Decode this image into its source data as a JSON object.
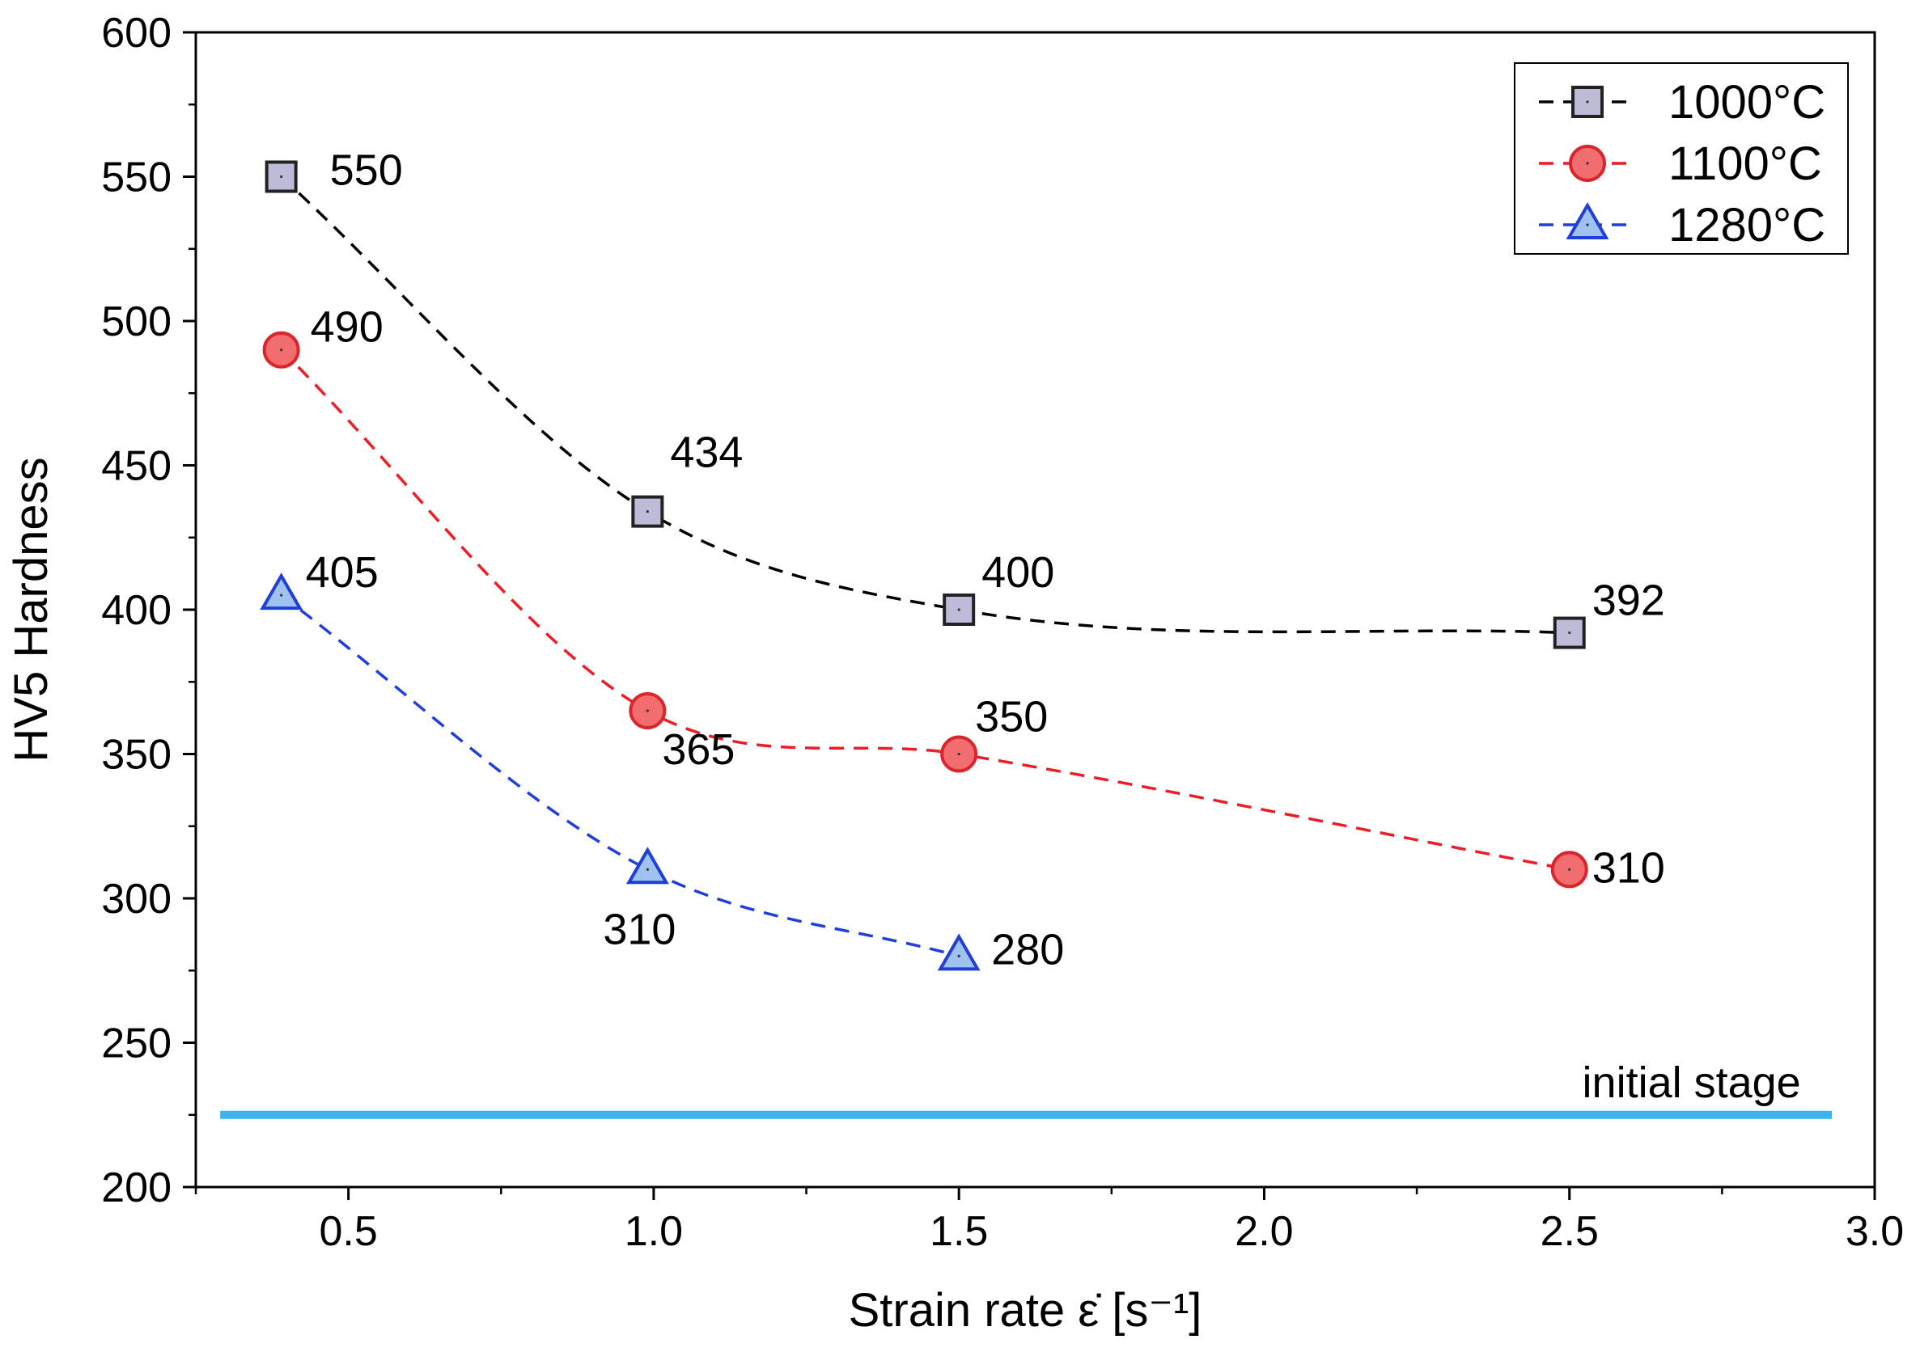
{
  "chart_data": {
    "type": "scatter",
    "xlabel": "Strain rate ε̇ [s⁻¹]",
    "ylabel": "HV5 Hardness",
    "xlim": [
      0.25,
      3.0
    ],
    "ylim": [
      200,
      600
    ],
    "xticks": [
      "0.5",
      "1.0",
      "1.5",
      "2.0",
      "2.5",
      "3.0"
    ],
    "yticks": [
      "200",
      "250",
      "300",
      "350",
      "400",
      "450",
      "500",
      "550",
      "600"
    ],
    "grid": false,
    "legend_position": "top-right",
    "series": [
      {
        "name": "1000°C",
        "marker": "square",
        "line_color": "#000000",
        "fill_color": "#bdbcd8",
        "edge_color": "#222222",
        "x": [
          0.39,
          0.99,
          1.5,
          2.5
        ],
        "y": [
          550,
          434,
          400,
          392
        ],
        "labels": [
          "550",
          "434",
          "400",
          "392"
        ]
      },
      {
        "name": "1100°C",
        "marker": "circle",
        "line_color": "#ee1c24",
        "fill_color": "#f26d6f",
        "edge_color": "#d8262b",
        "x": [
          0.39,
          0.99,
          1.5,
          2.5
        ],
        "y": [
          490,
          365,
          350,
          310
        ],
        "labels": [
          "490",
          "365",
          "350",
          "310"
        ]
      },
      {
        "name": "1280°C",
        "marker": "triangle",
        "line_color": "#1f3fd8",
        "fill_color": "#9fc3ee",
        "edge_color": "#1f3fd8",
        "x": [
          0.39,
          0.99,
          1.5
        ],
        "y": [
          405,
          310,
          280
        ],
        "labels": [
          "405",
          "310",
          "280"
        ]
      }
    ],
    "reference_line": {
      "label": "initial stage",
      "y": 225,
      "x_range": [
        0.29,
        2.93
      ],
      "color": "#3cb4ea"
    }
  }
}
